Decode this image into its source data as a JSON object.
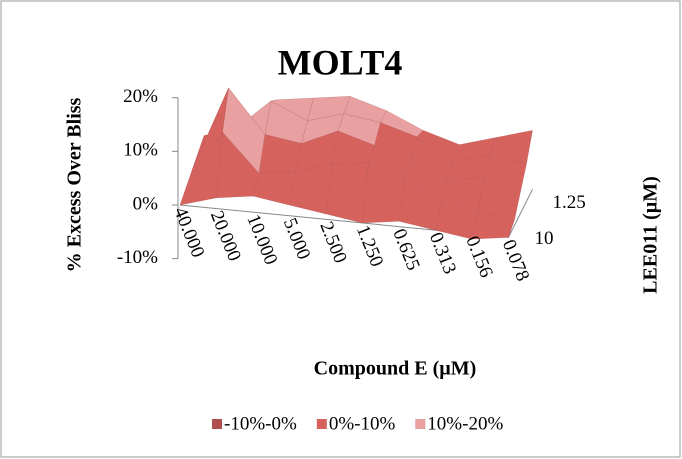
{
  "chart_data": {
    "type": "surface",
    "title": "MOLT4",
    "x_label": "Compound E (µM)",
    "y_label": "% Excess Over Bliss",
    "depth_label": "LEE011 (µM)",
    "categories": [
      "40.000",
      "20.000",
      "10.000",
      "5.000",
      "2.500",
      "1.250",
      "0.625",
      "0.313",
      "0.156",
      "0.078"
    ],
    "depth_categories": [
      "10",
      null,
      null,
      "1.25",
      null
    ],
    "values": [
      [
        0,
        2,
        3,
        2,
        1,
        0,
        1,
        0,
        -1,
        0
      ],
      [
        1,
        12,
        5,
        6,
        8,
        9,
        7,
        3,
        2,
        1
      ],
      [
        2,
        18,
        10,
        9,
        12,
        10,
        8,
        5,
        6,
        4
      ],
      [
        3,
        8,
        14,
        11,
        13,
        12,
        10,
        6,
        8,
        7
      ],
      [
        4,
        6,
        12,
        13,
        14,
        12,
        9,
        7,
        9,
        11
      ]
    ],
    "zlim": [
      -10,
      20
    ],
    "zticks": [
      {
        "value": -10,
        "label": "-10%"
      },
      {
        "value": 0,
        "label": "0%"
      },
      {
        "value": 10,
        "label": "10%"
      },
      {
        "value": 20,
        "label": "20%"
      }
    ],
    "legend": [
      {
        "name": "-10%-0%",
        "color": "#b0504e",
        "range": [
          -10,
          0
        ]
      },
      {
        "name": "0%-10%",
        "color": "#d6625e",
        "range": [
          0,
          10
        ]
      },
      {
        "name": "10%-20%",
        "color": "#e8a0a0",
        "range": [
          10,
          20
        ]
      }
    ]
  }
}
